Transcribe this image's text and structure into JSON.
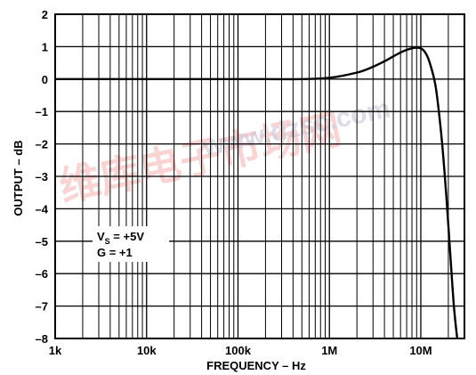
{
  "chart_data": {
    "type": "line",
    "x_scale": "log",
    "xlabel": "FREQUENCY – Hz",
    "ylabel": "OUTPUT – dB",
    "xlim": [
      1000,
      30000000
    ],
    "ylim": [
      -8,
      2
    ],
    "x_ticks": [
      {
        "value": 1000,
        "label": "1k"
      },
      {
        "value": 10000,
        "label": "10k"
      },
      {
        "value": 100000,
        "label": "100k"
      },
      {
        "value": 1000000,
        "label": "1M"
      },
      {
        "value": 10000000,
        "label": "10M"
      }
    ],
    "y_ticks": [
      {
        "value": 2,
        "label": "2"
      },
      {
        "value": 1,
        "label": "1"
      },
      {
        "value": 0,
        "label": "0"
      },
      {
        "value": -1,
        "label": "–1"
      },
      {
        "value": -2,
        "label": "–2"
      },
      {
        "value": -3,
        "label": "–3"
      },
      {
        "value": -4,
        "label": "–4"
      },
      {
        "value": -5,
        "label": "–5"
      },
      {
        "value": -6,
        "label": "–6"
      },
      {
        "value": -7,
        "label": "–7"
      },
      {
        "value": -8,
        "label": "–8"
      }
    ],
    "grid": true,
    "annotation": {
      "vs_main": "V",
      "vs_sub": "S",
      "vs_rest": " = +5V",
      "gain": "G = +1"
    },
    "series": [
      {
        "x": [
          1000,
          10000,
          100000,
          500000,
          1000000,
          2000000,
          3000000,
          4000000,
          5000000,
          6000000,
          7000000,
          8000000,
          9000000,
          10000000,
          11000000,
          12000000,
          13000000,
          14000000,
          15000000,
          17000000,
          19000000,
          21000000,
          23000000,
          25000000
        ],
        "y": [
          0,
          0,
          0,
          0,
          0.04,
          0.2,
          0.38,
          0.55,
          0.7,
          0.82,
          0.9,
          0.95,
          0.97,
          0.95,
          0.85,
          0.65,
          0.35,
          0,
          -0.5,
          -1.9,
          -3.6,
          -5.4,
          -7,
          -8
        ]
      }
    ]
  },
  "watermark": {
    "cn": "维库电子市场网",
    "url": "www.dzsc.com"
  }
}
